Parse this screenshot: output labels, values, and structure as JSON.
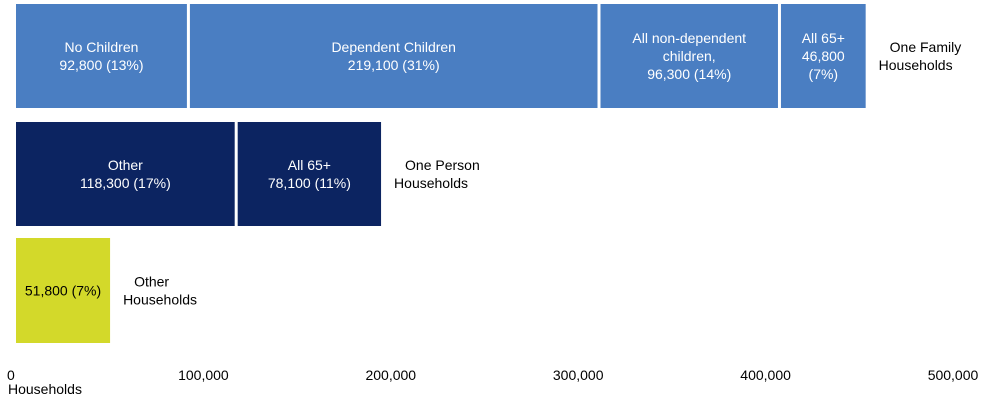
{
  "chart_data": {
    "type": "bar",
    "orientation": "horizontal",
    "stacked": true,
    "xlabel": "Households",
    "xlim": [
      0,
      500000
    ],
    "x_ticks": [
      0,
      100000,
      200000,
      300000,
      400000,
      500000
    ],
    "x_tick_labels": [
      "0",
      "100,000",
      "200,000",
      "300,000",
      "400,000",
      "500,000"
    ],
    "grid": false,
    "legend": "none",
    "categories": [
      {
        "label_lines": [
          "One Family",
          "Households"
        ],
        "color": "#4a7ec2",
        "text_color": "#ffffff",
        "segments": [
          {
            "value": 92800,
            "label_lines": [
              "No Children",
              "92,800 (13%)"
            ]
          },
          {
            "value": 219100,
            "label_lines": [
              "Dependent Children",
              "219,100 (31%)"
            ]
          },
          {
            "value": 96300,
            "label_lines": [
              "All non-dependent",
              "children,",
              "96,300 (14%)"
            ]
          },
          {
            "value": 46800,
            "label_lines": [
              "All 65+",
              "46,800",
              "(7%)"
            ]
          }
        ]
      },
      {
        "label_lines": [
          "One Person",
          "Households"
        ],
        "color": "#0c2461",
        "text_color": "#ffffff",
        "segments": [
          {
            "value": 118300,
            "label_lines": [
              "Other",
              "118,300 (17%)"
            ]
          },
          {
            "value": 78100,
            "label_lines": [
              "All 65+",
              "78,100 (11%)"
            ]
          }
        ]
      },
      {
        "label_lines": [
          "Other",
          "Households"
        ],
        "color": "#d3d92a",
        "text_color": "#000000",
        "segments": [
          {
            "value": 51800,
            "label_lines": [
              "51,800 (7%)"
            ]
          }
        ]
      }
    ]
  }
}
